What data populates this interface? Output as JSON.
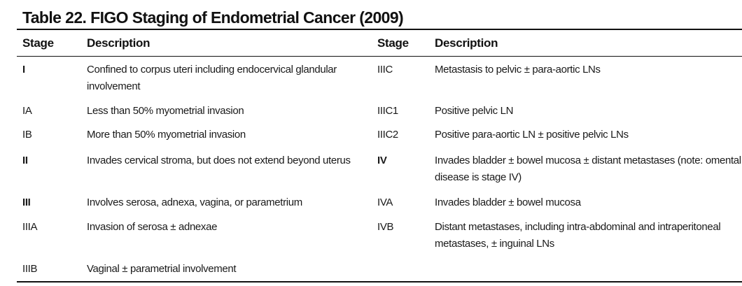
{
  "table": {
    "title": "Table 22. FIGO Staging of Endometrial Cancer (2009)",
    "headers": {
      "stage_left": "Stage",
      "description_left": "Description",
      "stage_right": "Stage",
      "description_right": "Description"
    },
    "left_rows": [
      {
        "stage": "I",
        "description": "Confined to corpus uteri including endocervical glandular involvement"
      },
      {
        "stage": "IA",
        "description": "Less than 50% myometrial invasion"
      },
      {
        "stage": "IB",
        "description": "More than 50% myometrial invasion"
      },
      {
        "stage": "II",
        "description": "Invades cervical stroma, but does not extend beyond uterus"
      },
      {
        "stage": "III",
        "description": "Involves serosa, adnexa, vagina, or parametrium"
      },
      {
        "stage": "IIIA",
        "description": "Invasion of serosa ± adnexae"
      },
      {
        "stage": "IIIB",
        "description": "Vaginal ± parametrial involvement"
      }
    ],
    "right_rows": [
      {
        "stage": "IIIC",
        "description": "Metastasis to pelvic ± para-aortic LNs"
      },
      {
        "stage": "IIIC1",
        "description": "Positive pelvic LN"
      },
      {
        "stage": "IIIC2",
        "description": "Positive para-aortic LN ± positive pelvic LNs"
      },
      {
        "stage": "IV",
        "description": "Invades bladder ± bowel mucosa ± distant metastases (note: omental disease is stage IV)"
      },
      {
        "stage": "IVA",
        "description": "Invades bladder ± bowel mucosa"
      },
      {
        "stage": "IVB",
        "description": "Distant metastases, including intra-abdominal and intraperitoneal metastases, ± inguinal LNs"
      }
    ]
  }
}
